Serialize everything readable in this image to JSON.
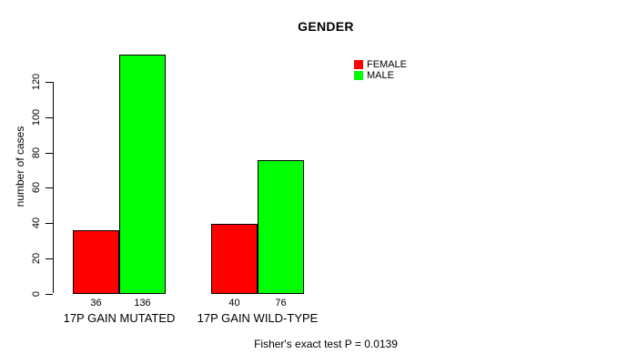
{
  "chart_data": {
    "type": "bar",
    "title": "GENDER",
    "ylabel": "number of cases",
    "xlabel": "",
    "categories": [
      "17P GAIN MUTATED",
      "17P GAIN WILD-TYPE"
    ],
    "series": [
      {
        "name": "FEMALE",
        "color": "#ff0000",
        "values": [
          36,
          40
        ]
      },
      {
        "name": "MALE",
        "color": "#00ff00",
        "values": [
          136,
          76
        ]
      }
    ],
    "bar_value_labels": [
      [
        "36",
        "136"
      ],
      [
        "40",
        "76"
      ]
    ],
    "yticks": [
      0,
      20,
      40,
      60,
      80,
      100,
      120
    ],
    "ylim": [
      0,
      136
    ],
    "grid": false,
    "legend_position": "top-right",
    "annotation": "Fisher's exact test P = 0.0139"
  }
}
